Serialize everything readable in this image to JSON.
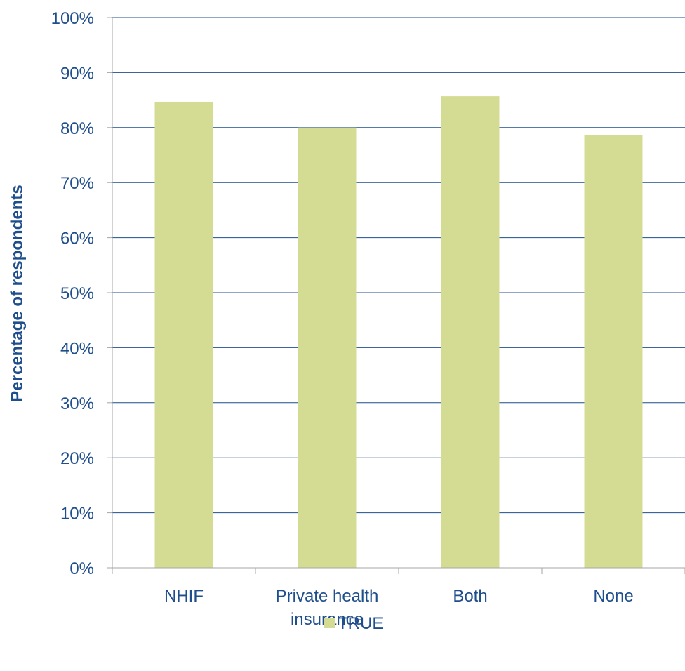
{
  "chart_data": {
    "type": "bar",
    "title": "",
    "xlabel": "",
    "ylabel": "Percentage of respondents",
    "categories": [
      "NHIF",
      "Private health insurance",
      "Both",
      "None"
    ],
    "category_lines": [
      [
        "NHIF"
      ],
      [
        "Private health",
        "insurance"
      ],
      [
        "Both"
      ],
      [
        "None"
      ]
    ],
    "series": [
      {
        "name": "TRUE",
        "values": [
          0.847,
          0.8,
          0.857,
          0.787
        ],
        "color": "#d4dc93"
      }
    ],
    "ylim": [
      0,
      1
    ],
    "yticks": [
      0,
      0.1,
      0.2,
      0.3,
      0.4,
      0.5,
      0.6,
      0.7,
      0.8,
      0.9,
      1.0
    ],
    "ytick_labels": [
      "0%",
      "10%",
      "20%",
      "30%",
      "40%",
      "50%",
      "60%",
      "70%",
      "80%",
      "90%",
      "100%"
    ],
    "grid": true,
    "legend": "bottom",
    "colors": {
      "text": "#1f4e8c",
      "gridline": "#1f4e8c",
      "axis": "#a6a6a6"
    }
  }
}
